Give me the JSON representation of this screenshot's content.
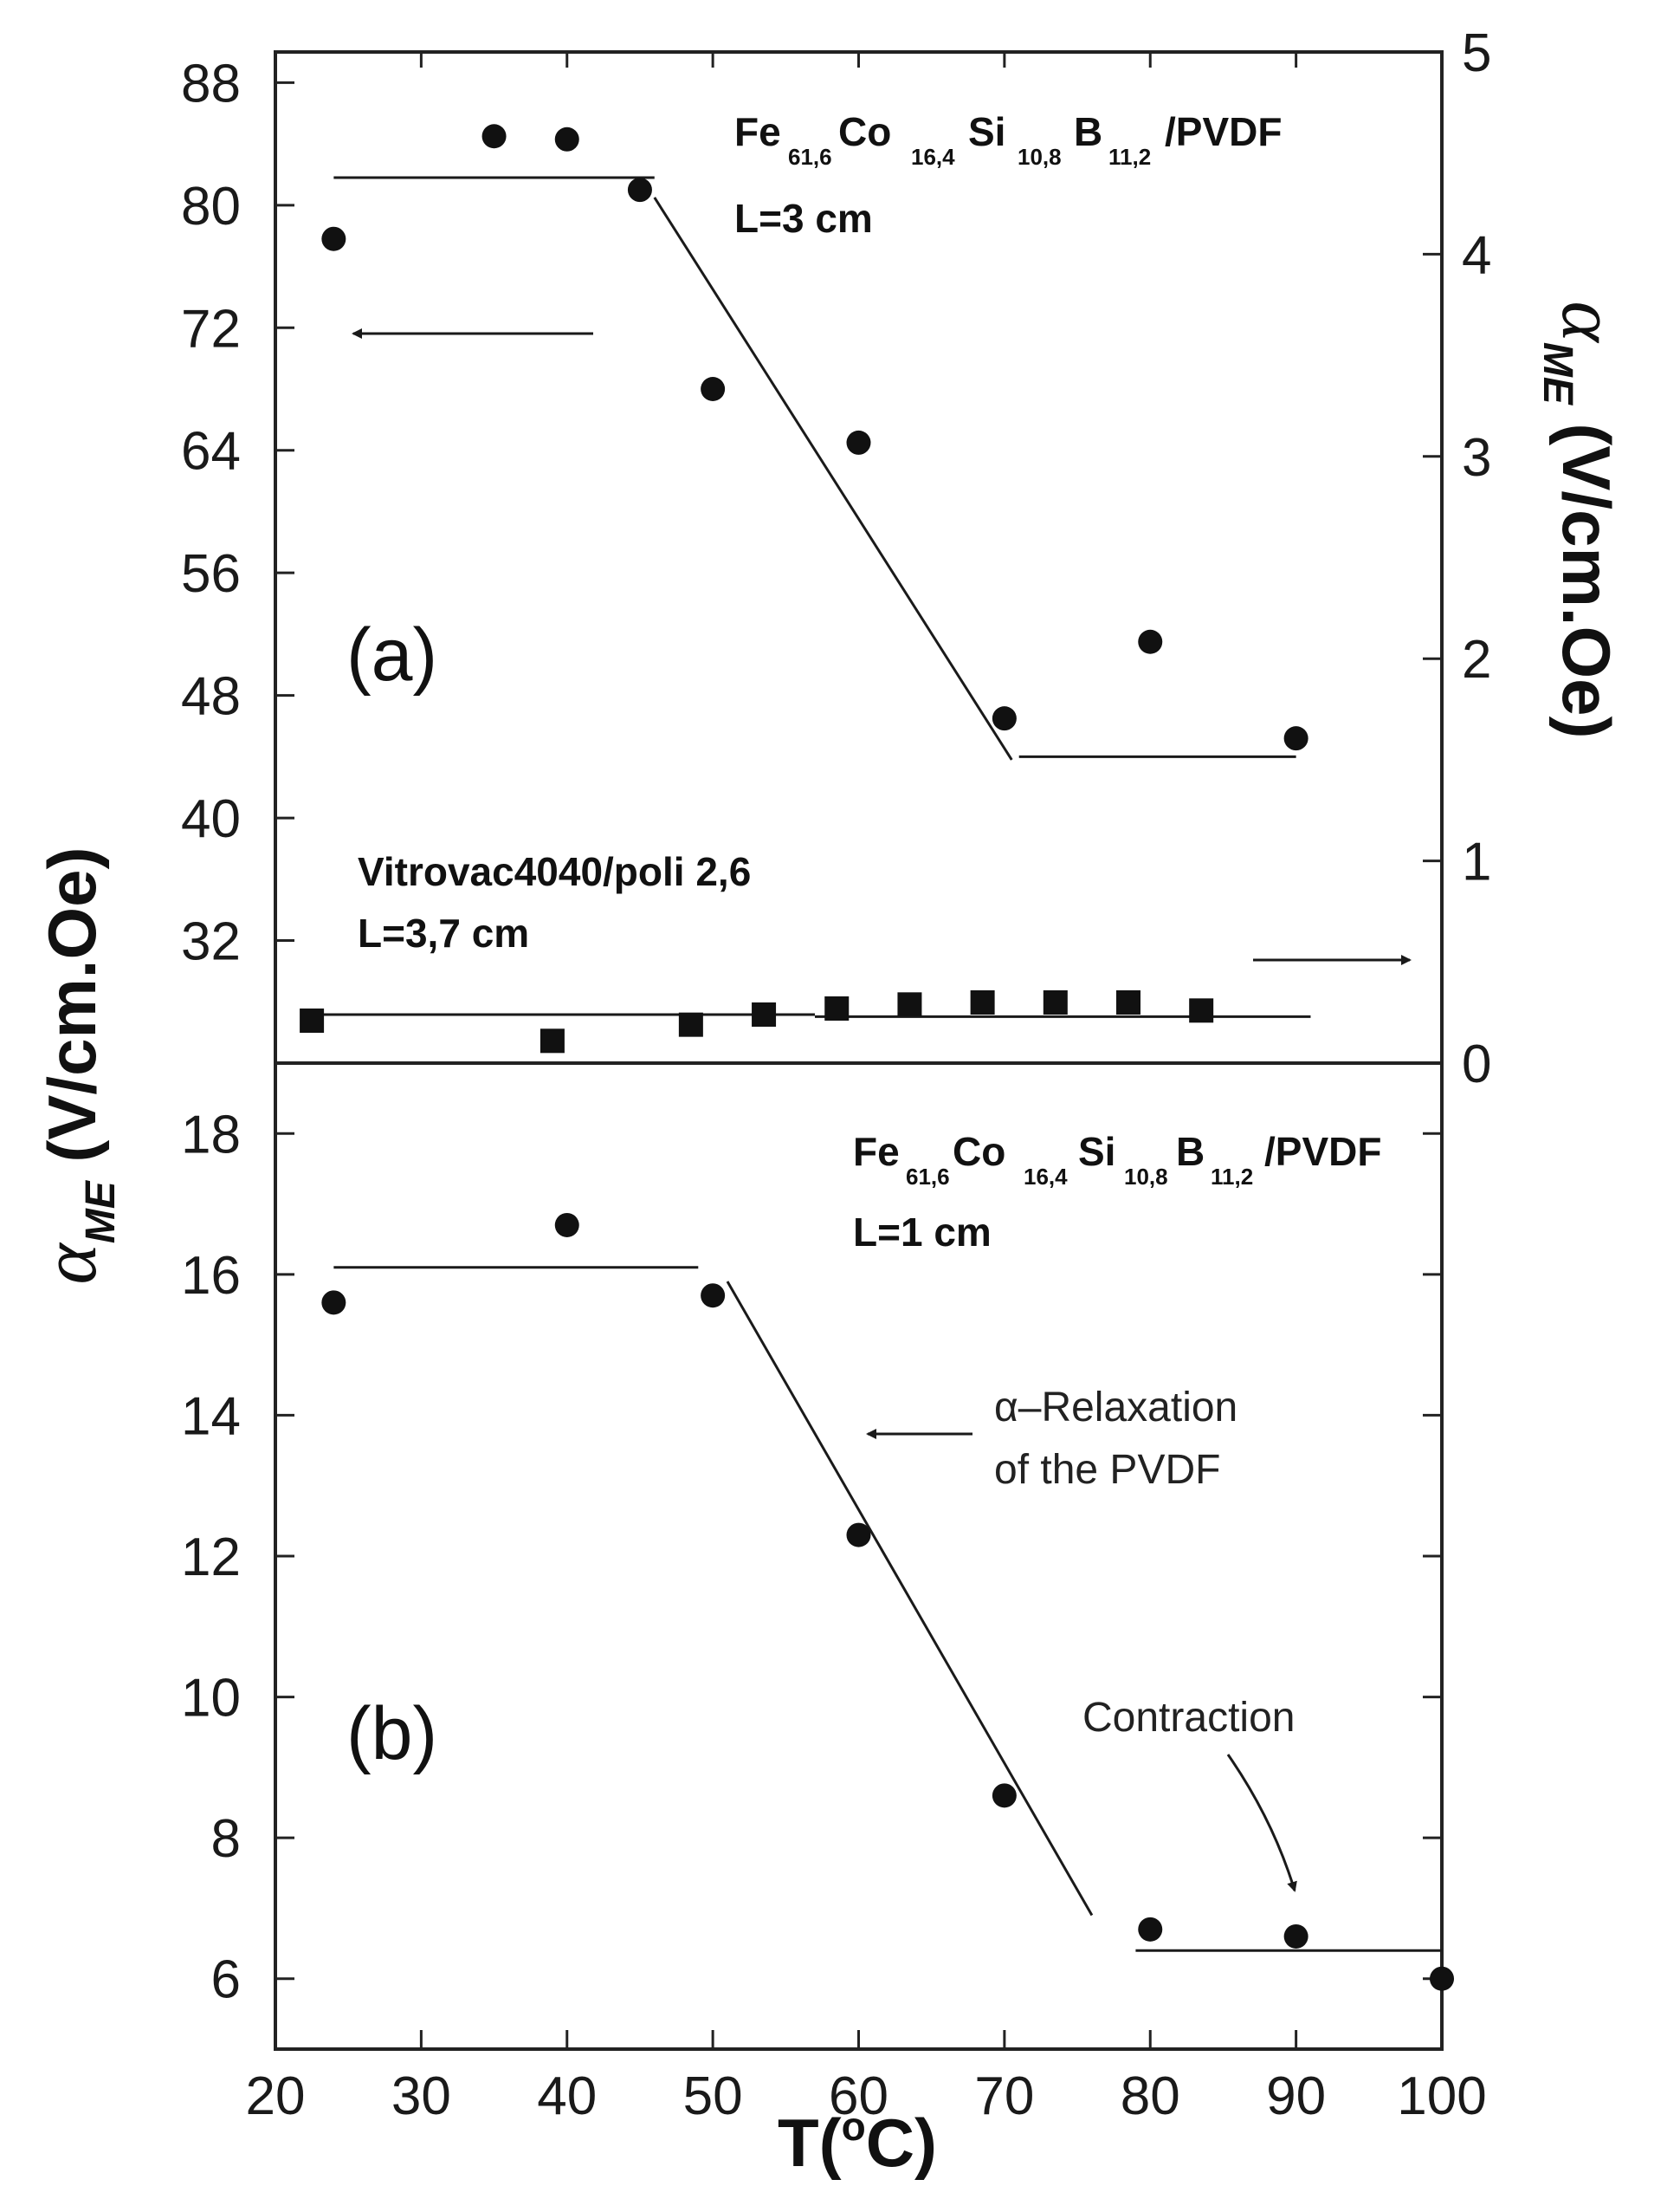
{
  "chart_data": [
    {
      "panel": "(a)",
      "type": "scatter",
      "xlabel": "T(°C)",
      "x_range": [
        20,
        100
      ],
      "x_ticks": [
        20,
        30,
        40,
        50,
        60,
        70,
        80,
        90,
        100
      ],
      "left_axis": {
        "label": "α_ME (V/cm.Oe)",
        "range": [
          24,
          90
        ],
        "ticks": [
          32,
          40,
          48,
          56,
          64,
          72,
          80,
          88
        ]
      },
      "right_axis": {
        "label": "α_ME (V/cm.Oe)",
        "range": [
          0,
          5
        ],
        "ticks": [
          0,
          1,
          2,
          3,
          4,
          5
        ]
      },
      "series": [
        {
          "name": "Fe61,6Co16,4Si10,8B11,2/PVDF, L=3 cm",
          "axis": "left",
          "marker": "circle",
          "x": [
            24,
            35,
            40,
            45,
            50,
            60,
            70,
            80,
            90
          ],
          "y": [
            77.8,
            84.5,
            84.3,
            81,
            68,
            64.5,
            46.5,
            51.5,
            45.2
          ],
          "fit_lines": [
            [
              [
                24,
                81.8
              ],
              [
                46,
                81.8
              ]
            ],
            [
              [
                46,
                80.5
              ],
              [
                70.5,
                43.8
              ]
            ],
            [
              [
                71,
                44
              ],
              [
                90,
                44
              ]
            ]
          ]
        },
        {
          "name": "Vitrovac4040/poli 2,6, L=3,7 cm",
          "axis": "right",
          "marker": "square",
          "x": [
            22.5,
            39,
            48.5,
            53.5,
            58.5,
            63.5,
            68.5,
            73.5,
            78.5,
            83.5
          ],
          "y": [
            0.21,
            0.11,
            0.19,
            0.24,
            0.27,
            0.29,
            0.3,
            0.3,
            0.3,
            0.26
          ],
          "fit_lines": [
            [
              [
                22.5,
                0.24
              ],
              [
                57,
                0.24
              ]
            ],
            [
              [
                57,
                0.23
              ],
              [
                91,
                0.23
              ]
            ]
          ]
        }
      ],
      "annotations": {
        "label1_main": "Fe",
        "label1_subs": [
          "61,6",
          "16,4",
          "10,8",
          "11,2"
        ],
        "label1_elements": [
          "Co",
          "Si",
          "B"
        ],
        "label1_suffix": "/PVDF",
        "label1_length": "L=3 cm",
        "label2_name": "Vitrovac4040/poli 2,6",
        "label2_length": "L=3,7 cm"
      }
    },
    {
      "panel": "(b)",
      "type": "scatter",
      "xlabel": "T(°C)",
      "x_range": [
        20,
        100
      ],
      "left_axis": {
        "label": "α_ME (V/cm.Oe)",
        "range": [
          5,
          19
        ],
        "ticks": [
          6,
          8,
          10,
          12,
          14,
          16,
          18
        ]
      },
      "series": [
        {
          "name": "Fe61,6Co16,4Si10,8B11,2/PVDF, L=1 cm",
          "marker": "circle",
          "x": [
            24,
            40,
            50,
            60,
            70,
            80,
            90,
            100
          ],
          "y": [
            15.6,
            16.7,
            15.7,
            12.3,
            8.6,
            6.7,
            6.6,
            6.0
          ],
          "fit_lines": [
            [
              [
                24,
                16.1
              ],
              [
                49,
                16.1
              ]
            ],
            [
              [
                51,
                15.9
              ],
              [
                76,
                6.9
              ]
            ],
            [
              [
                79,
                6.4
              ],
              [
                100,
                6.4
              ]
            ]
          ]
        }
      ],
      "annotations": {
        "label1_main": "Fe",
        "label1_subs": [
          "61,6",
          "16,4",
          "10,8",
          "11,2"
        ],
        "label1_elements": [
          "Co",
          "Si",
          "B"
        ],
        "label1_suffix": "/PVDF",
        "label1_length": "L=1 cm",
        "relax_line1": "α–Relaxation",
        "relax_line2": "of the PVDF",
        "contraction": "Contraction"
      }
    }
  ],
  "text": {
    "x_axis_title": "T(",
    "x_axis_o": "o",
    "x_axis_unit": "C)",
    "y_left_alpha": "α",
    "y_left_sub": "ME",
    "y_left_units": " (V/cm.Oe)",
    "y_right_alpha": "α",
    "y_right_sub": "ME",
    "y_right_units": " (V/cm.Oe)",
    "panel_a": "(a)",
    "panel_b": "(b)"
  }
}
